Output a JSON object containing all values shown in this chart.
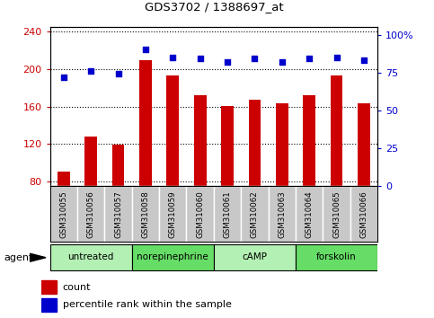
{
  "title": "GDS3702 / 1388697_at",
  "samples": [
    "GSM310055",
    "GSM310056",
    "GSM310057",
    "GSM310058",
    "GSM310059",
    "GSM310060",
    "GSM310061",
    "GSM310062",
    "GSM310063",
    "GSM310064",
    "GSM310065",
    "GSM310066"
  ],
  "counts": [
    90,
    128,
    119,
    210,
    193,
    172,
    161,
    167,
    163,
    172,
    193,
    163
  ],
  "percentile_ranks": [
    72,
    76,
    74,
    90,
    85,
    84,
    82,
    84,
    82,
    84,
    85,
    83
  ],
  "agents": [
    {
      "label": "untreated",
      "start": 0,
      "end": 3,
      "color": "#b3f0b3"
    },
    {
      "label": "norepinephrine",
      "start": 3,
      "end": 6,
      "color": "#66dd66"
    },
    {
      "label": "cAMP",
      "start": 6,
      "end": 9,
      "color": "#b3f0b3"
    },
    {
      "label": "forskolin",
      "start": 9,
      "end": 12,
      "color": "#66dd66"
    }
  ],
  "ylim_left": [
    75,
    245
  ],
  "ylim_right": [
    0,
    105
  ],
  "yticks_left": [
    80,
    120,
    160,
    200,
    240
  ],
  "yticks_right": [
    0,
    25,
    50,
    75,
    100
  ],
  "bar_color": "#cc0000",
  "dot_color": "#0000cc",
  "bar_width": 0.45,
  "bg_color": "#ffffff",
  "tick_label_color_left": "#cc0000",
  "tick_label_color_right": "#0000cc",
  "legend_count_label": "count",
  "legend_pct_label": "percentile rank within the sample",
  "agent_label": "agent",
  "sample_box_color": "#c8c8c8"
}
